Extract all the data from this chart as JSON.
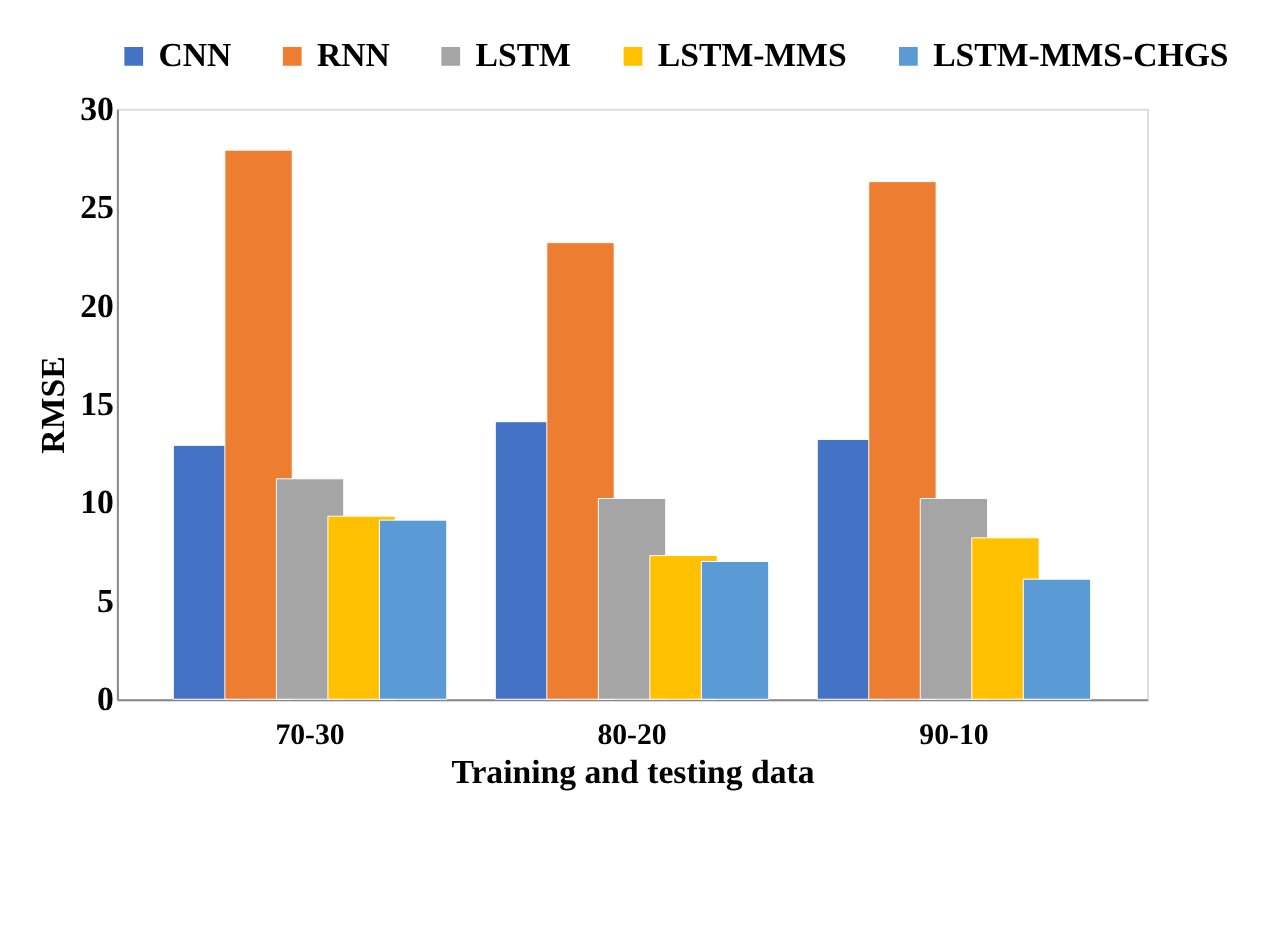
{
  "chart_data": {
    "type": "bar",
    "xlabel": "Training and testing data",
    "ylabel": "RMSE",
    "categories": [
      "70-30",
      "80-20",
      "90-10"
    ],
    "series": [
      {
        "name": "CNN",
        "color": "#4472c4",
        "values": [
          12.9,
          14.1,
          13.2
        ]
      },
      {
        "name": "RNN",
        "color": "#ed7d31",
        "values": [
          27.9,
          23.2,
          26.3
        ]
      },
      {
        "name": "LSTM",
        "color": "#a5a5a5",
        "values": [
          11.2,
          10.2,
          10.2
        ]
      },
      {
        "name": "LSTM-MMS",
        "color": "#ffc000",
        "values": [
          9.3,
          7.3,
          8.2
        ]
      },
      {
        "name": "LSTM-MMS-CHGS",
        "color": "#5b9bd5",
        "values": [
          9.1,
          7.0,
          6.1
        ]
      }
    ],
    "ylim": [
      0,
      30
    ],
    "yticks": [
      0,
      5,
      10,
      15,
      20,
      25,
      30
    ],
    "grid": false,
    "legend": "top"
  }
}
